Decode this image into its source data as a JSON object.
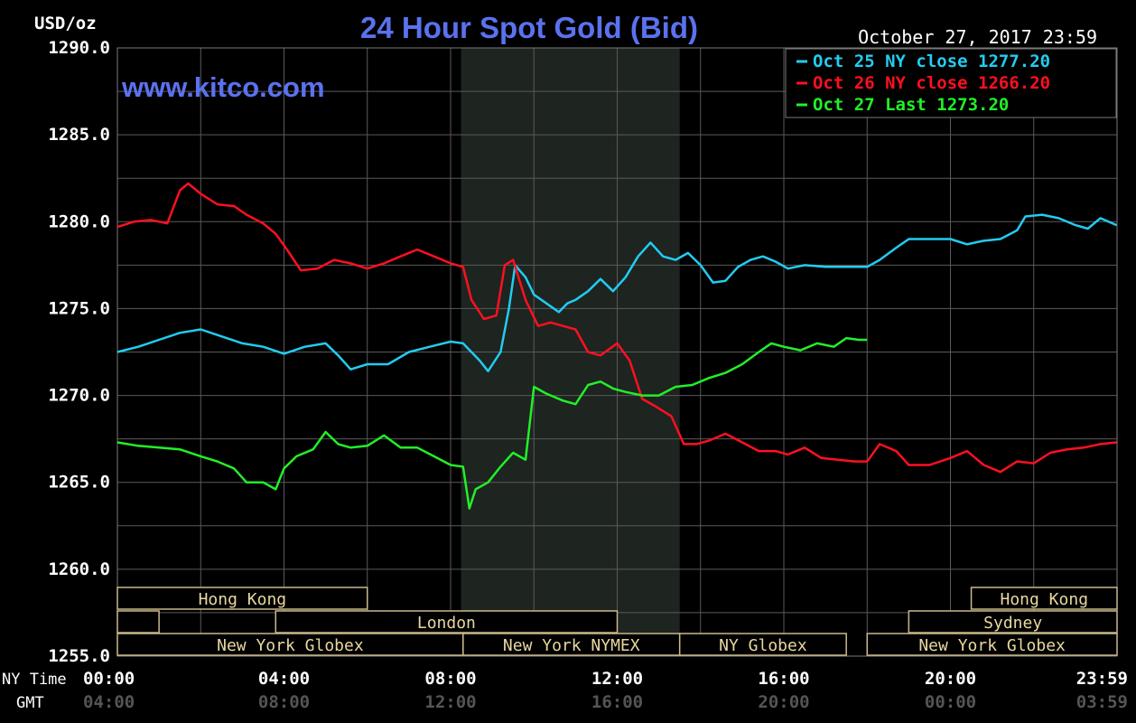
{
  "chart_data": {
    "type": "line",
    "title": "24 Hour Spot Gold (Bid)",
    "watermark": "www.kitco.com",
    "timestamp": "October 27, 2017 23:59",
    "ylabel": "USD/oz",
    "ylim": [
      1255.0,
      1290.0
    ],
    "y_ticks": [
      "1290.0",
      "1285.0",
      "1280.0",
      "1275.0",
      "1270.0",
      "1265.0",
      "1260.0",
      "1255.0"
    ],
    "x_row_labels": {
      "ny": "NY Time",
      "gmt": "GMT"
    },
    "x_ticks_ny": [
      "00:00",
      "04:00",
      "08:00",
      "12:00",
      "16:00",
      "20:00",
      "23:59"
    ],
    "x_ticks_gmt": [
      "04:00",
      "08:00",
      "12:00",
      "16:00",
      "20:00",
      "00:00",
      "03:59"
    ],
    "xlim_hours": [
      0,
      24
    ],
    "grid": true,
    "legend_position": "top-right",
    "shaded_region_hours": [
      8.25,
      13.5
    ],
    "series": [
      {
        "name": "Oct 25 NY close 1277.20",
        "color": "#22ccf0",
        "points": [
          [
            0.0,
            1272.5
          ],
          [
            0.5,
            1272.8
          ],
          [
            1.0,
            1273.2
          ],
          [
            1.5,
            1273.6
          ],
          [
            2.0,
            1273.8
          ],
          [
            2.5,
            1273.4
          ],
          [
            3.0,
            1273.0
          ],
          [
            3.5,
            1272.8
          ],
          [
            4.0,
            1272.4
          ],
          [
            4.5,
            1272.8
          ],
          [
            5.0,
            1273.0
          ],
          [
            5.3,
            1272.3
          ],
          [
            5.6,
            1271.5
          ],
          [
            6.0,
            1271.8
          ],
          [
            6.5,
            1271.8
          ],
          [
            7.0,
            1272.5
          ],
          [
            7.5,
            1272.8
          ],
          [
            8.0,
            1273.1
          ],
          [
            8.3,
            1273.0
          ],
          [
            8.7,
            1272.0
          ],
          [
            8.9,
            1271.4
          ],
          [
            9.2,
            1272.5
          ],
          [
            9.4,
            1275.0
          ],
          [
            9.55,
            1277.5
          ],
          [
            9.8,
            1276.8
          ],
          [
            10.0,
            1275.8
          ],
          [
            10.3,
            1275.3
          ],
          [
            10.6,
            1274.8
          ],
          [
            10.8,
            1275.3
          ],
          [
            11.0,
            1275.5
          ],
          [
            11.3,
            1276.0
          ],
          [
            11.6,
            1276.7
          ],
          [
            11.9,
            1276.0
          ],
          [
            12.2,
            1276.8
          ],
          [
            12.5,
            1278.0
          ],
          [
            12.8,
            1278.8
          ],
          [
            13.1,
            1278.0
          ],
          [
            13.4,
            1277.8
          ],
          [
            13.7,
            1278.2
          ],
          [
            14.0,
            1277.5
          ],
          [
            14.3,
            1276.5
          ],
          [
            14.6,
            1276.6
          ],
          [
            14.9,
            1277.4
          ],
          [
            15.2,
            1277.8
          ],
          [
            15.5,
            1278.0
          ],
          [
            15.8,
            1277.7
          ],
          [
            16.1,
            1277.3
          ],
          [
            16.5,
            1277.5
          ],
          [
            17.0,
            1277.4
          ],
          [
            17.5,
            1277.4
          ],
          [
            18.0,
            1277.4
          ],
          [
            18.3,
            1277.8
          ],
          [
            18.7,
            1278.5
          ],
          [
            19.0,
            1279.0
          ],
          [
            19.5,
            1279.0
          ],
          [
            20.0,
            1279.0
          ],
          [
            20.4,
            1278.7
          ],
          [
            20.8,
            1278.9
          ],
          [
            21.2,
            1279.0
          ],
          [
            21.6,
            1279.5
          ],
          [
            21.8,
            1280.3
          ],
          [
            22.2,
            1280.4
          ],
          [
            22.6,
            1280.2
          ],
          [
            23.0,
            1279.8
          ],
          [
            23.3,
            1279.6
          ],
          [
            23.6,
            1280.2
          ],
          [
            23.99,
            1279.8
          ]
        ]
      },
      {
        "name": "Oct 26 NY close 1266.20",
        "color": "#ff1020",
        "points": [
          [
            0.0,
            1279.7
          ],
          [
            0.4,
            1280.0
          ],
          [
            0.8,
            1280.1
          ],
          [
            1.2,
            1279.9
          ],
          [
            1.5,
            1281.8
          ],
          [
            1.7,
            1282.2
          ],
          [
            2.0,
            1281.6
          ],
          [
            2.4,
            1281.0
          ],
          [
            2.8,
            1280.9
          ],
          [
            3.1,
            1280.4
          ],
          [
            3.5,
            1279.9
          ],
          [
            3.8,
            1279.3
          ],
          [
            4.1,
            1278.3
          ],
          [
            4.4,
            1277.2
          ],
          [
            4.8,
            1277.3
          ],
          [
            5.2,
            1277.8
          ],
          [
            5.6,
            1277.6
          ],
          [
            6.0,
            1277.3
          ],
          [
            6.4,
            1277.6
          ],
          [
            6.8,
            1278.0
          ],
          [
            7.2,
            1278.4
          ],
          [
            7.6,
            1278.0
          ],
          [
            8.0,
            1277.6
          ],
          [
            8.3,
            1277.4
          ],
          [
            8.5,
            1275.5
          ],
          [
            8.8,
            1274.4
          ],
          [
            9.1,
            1274.6
          ],
          [
            9.3,
            1277.5
          ],
          [
            9.5,
            1277.8
          ],
          [
            9.8,
            1275.5
          ],
          [
            10.1,
            1274.0
          ],
          [
            10.4,
            1274.2
          ],
          [
            10.7,
            1274.0
          ],
          [
            11.0,
            1273.8
          ],
          [
            11.3,
            1272.5
          ],
          [
            11.6,
            1272.3
          ],
          [
            12.0,
            1273.0
          ],
          [
            12.3,
            1272.0
          ],
          [
            12.6,
            1269.8
          ],
          [
            12.9,
            1269.4
          ],
          [
            13.3,
            1268.8
          ],
          [
            13.6,
            1267.2
          ],
          [
            13.9,
            1267.2
          ],
          [
            14.2,
            1267.4
          ],
          [
            14.6,
            1267.8
          ],
          [
            15.0,
            1267.3
          ],
          [
            15.4,
            1266.8
          ],
          [
            15.8,
            1266.8
          ],
          [
            16.1,
            1266.6
          ],
          [
            16.5,
            1267.0
          ],
          [
            16.9,
            1266.4
          ],
          [
            17.3,
            1266.3
          ],
          [
            17.7,
            1266.2
          ],
          [
            18.0,
            1266.2
          ],
          [
            18.3,
            1267.2
          ],
          [
            18.7,
            1266.8
          ],
          [
            19.0,
            1266.0
          ],
          [
            19.5,
            1266.0
          ],
          [
            20.0,
            1266.4
          ],
          [
            20.4,
            1266.8
          ],
          [
            20.8,
            1266.0
          ],
          [
            21.2,
            1265.6
          ],
          [
            21.6,
            1266.2
          ],
          [
            22.0,
            1266.1
          ],
          [
            22.4,
            1266.7
          ],
          [
            22.8,
            1266.9
          ],
          [
            23.2,
            1267.0
          ],
          [
            23.6,
            1267.2
          ],
          [
            23.99,
            1267.3
          ]
        ]
      },
      {
        "name": "Oct 27 Last 1273.20",
        "color": "#22f028",
        "points": [
          [
            0.0,
            1267.3
          ],
          [
            0.5,
            1267.1
          ],
          [
            1.0,
            1267.0
          ],
          [
            1.5,
            1266.9
          ],
          [
            2.0,
            1266.5
          ],
          [
            2.4,
            1266.2
          ],
          [
            2.8,
            1265.8
          ],
          [
            3.1,
            1265.0
          ],
          [
            3.5,
            1265.0
          ],
          [
            3.8,
            1264.6
          ],
          [
            4.0,
            1265.8
          ],
          [
            4.3,
            1266.5
          ],
          [
            4.7,
            1266.9
          ],
          [
            5.0,
            1267.9
          ],
          [
            5.3,
            1267.2
          ],
          [
            5.6,
            1267.0
          ],
          [
            6.0,
            1267.1
          ],
          [
            6.4,
            1267.7
          ],
          [
            6.8,
            1267.0
          ],
          [
            7.2,
            1267.0
          ],
          [
            7.6,
            1266.5
          ],
          [
            8.0,
            1266.0
          ],
          [
            8.3,
            1265.9
          ],
          [
            8.45,
            1263.5
          ],
          [
            8.6,
            1264.6
          ],
          [
            8.9,
            1265.0
          ],
          [
            9.2,
            1265.9
          ],
          [
            9.5,
            1266.7
          ],
          [
            9.8,
            1266.3
          ],
          [
            10.0,
            1270.5
          ],
          [
            10.3,
            1270.1
          ],
          [
            10.7,
            1269.7
          ],
          [
            11.0,
            1269.5
          ],
          [
            11.3,
            1270.6
          ],
          [
            11.6,
            1270.8
          ],
          [
            11.9,
            1270.4
          ],
          [
            12.2,
            1270.2
          ],
          [
            12.6,
            1270.0
          ],
          [
            13.0,
            1270.0
          ],
          [
            13.4,
            1270.5
          ],
          [
            13.8,
            1270.6
          ],
          [
            14.2,
            1271.0
          ],
          [
            14.6,
            1271.3
          ],
          [
            15.0,
            1271.8
          ],
          [
            15.4,
            1272.5
          ],
          [
            15.7,
            1273.0
          ],
          [
            16.0,
            1272.8
          ],
          [
            16.4,
            1272.6
          ],
          [
            16.8,
            1273.0
          ],
          [
            17.2,
            1272.8
          ],
          [
            17.5,
            1273.3
          ],
          [
            17.8,
            1273.2
          ],
          [
            18.0,
            1273.2
          ]
        ]
      }
    ],
    "sessions": [
      {
        "label": "Hong Kong",
        "row": 0,
        "start": 0.0,
        "end": 6.0
      },
      {
        "label": "",
        "row": 1,
        "start": 0.0,
        "end": 1.0
      },
      {
        "label": "London",
        "row": 1,
        "start": 3.8,
        "end": 12.0
      },
      {
        "label": "New York Globex",
        "row": 2,
        "start": 0.0,
        "end": 8.3
      },
      {
        "label": "New York NYMEX",
        "row": 2,
        "start": 8.3,
        "end": 13.5
      },
      {
        "label": "NY Globex",
        "row": 2,
        "start": 13.5,
        "end": 17.5
      },
      {
        "label": "Hong Kong",
        "row": 0,
        "start": 20.5,
        "end": 24.0
      },
      {
        "label": "Sydney",
        "row": 1,
        "start": 19.0,
        "end": 24.0
      },
      {
        "label": "New York Globex",
        "row": 2,
        "start": 18.0,
        "end": 24.0
      }
    ]
  }
}
